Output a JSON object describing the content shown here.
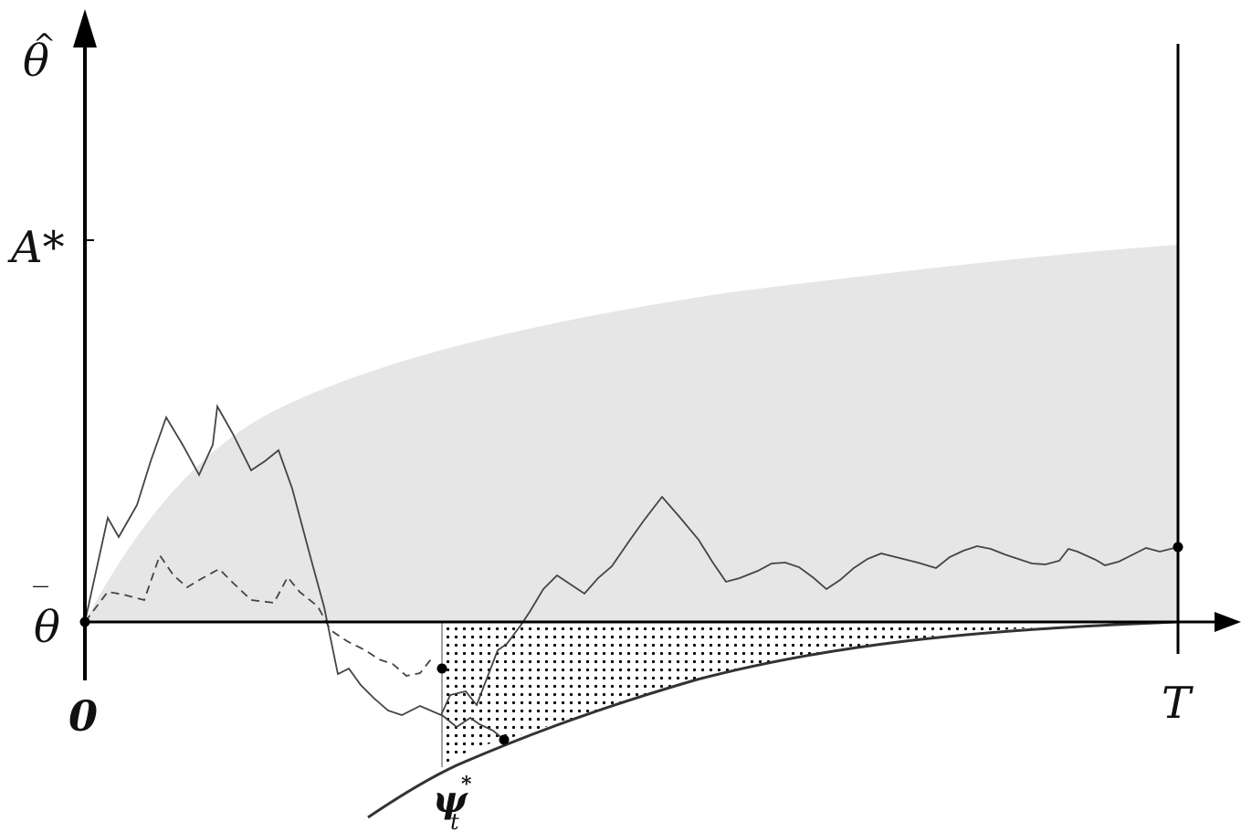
{
  "labels": {
    "y_axis": "θ",
    "y_axis_accent": "^",
    "upper_bound": "A*",
    "mean": "θ",
    "mean_accent": "‾",
    "origin": "0",
    "horizon": "T",
    "threshold_curve": "ψ",
    "threshold_sup": "*",
    "threshold_sub": "t"
  },
  "colors": {
    "shaded_region": "#e6e6e6",
    "paths": "#444444",
    "axes": "#000000",
    "dots": "#000000"
  }
}
